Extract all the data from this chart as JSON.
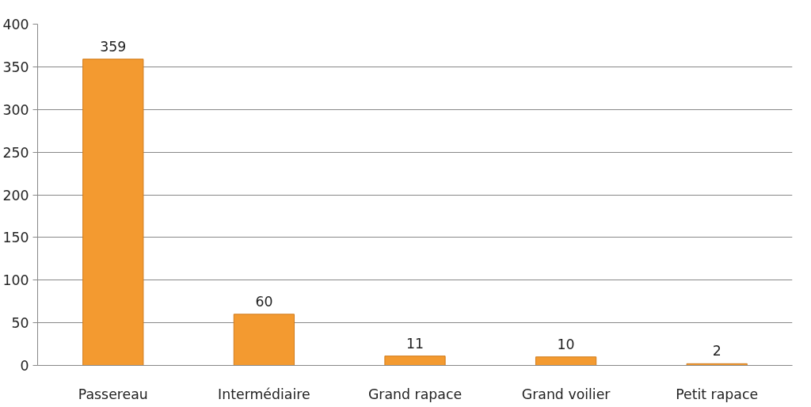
{
  "chart_data": {
    "type": "bar",
    "categories": [
      "Passereau",
      "Intermédiaire",
      "Grand rapace",
      "Grand voilier",
      "Petit rapace"
    ],
    "values": [
      359,
      60,
      11,
      10,
      2
    ],
    "color": "#f39a30",
    "ylim": [
      0,
      400
    ],
    "yticks": [
      0,
      50,
      100,
      150,
      200,
      250,
      300,
      350,
      400
    ],
    "grid": "y",
    "data_labels": true
  }
}
